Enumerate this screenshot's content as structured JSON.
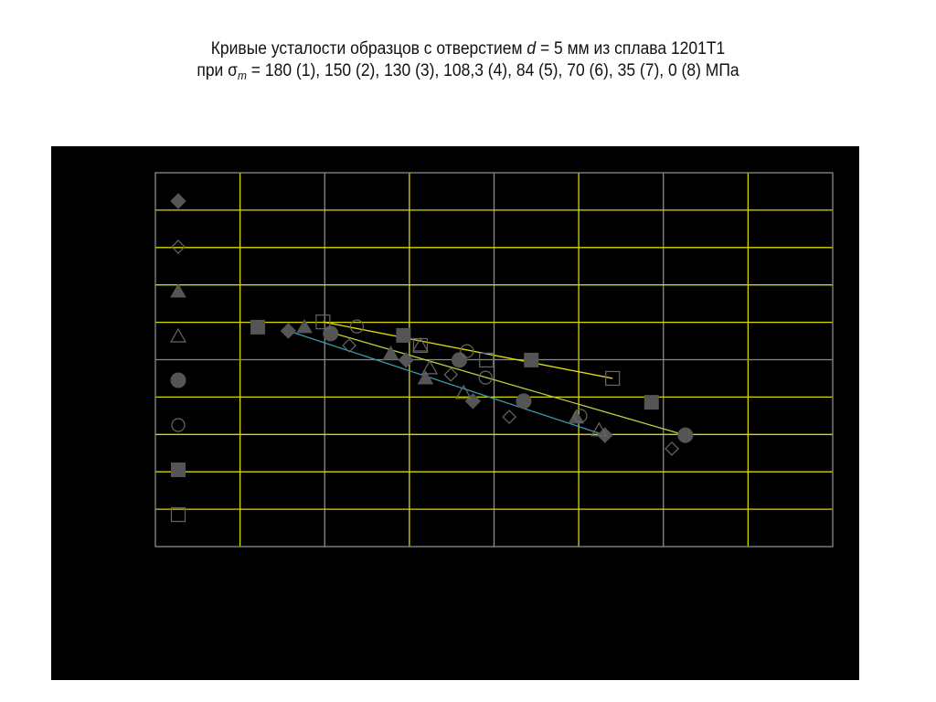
{
  "title": {
    "line1_a": "Кривые усталости образцов с отверстием ",
    "line1_d": "d",
    "line1_b": " = 5 мм из сплава 1201Т1",
    "line2_a": "при σ",
    "line2_sub": "m",
    "line2_b": " = 180 (1), 150 (2), 130 (3), 108,3 (4), 84 (5), 70 (6), 35 (7), 0 (8) МПа"
  },
  "chart_data": {
    "type": "scatter",
    "xlabel": "",
    "ylabel": "",
    "xlim": [
      0,
      8
    ],
    "ylim": [
      0,
      10
    ],
    "grid": true,
    "tick_labels_shown": false,
    "legend_placement": "left-inside",
    "colors": {
      "background": "#000000",
      "marker": "#555555",
      "grid_yellow": "#d8d800",
      "grid_gray": "#8a8a8a",
      "fit_8": "#e0e000",
      "fit_5": "#b8d040",
      "fit_1": "#3a9ab0"
    },
    "series": [
      {
        "marker": "filled-diamond",
        "x": [
          1.57,
          2.96,
          3.75,
          5.31
        ],
        "y": [
          5.77,
          4.99,
          3.89,
          2.98
        ]
      },
      {
        "marker": "open-diamond",
        "x": [
          2.29,
          3.49,
          4.18,
          6.1
        ],
        "y": [
          5.38,
          4.6,
          3.47,
          2.62
        ]
      },
      {
        "marker": "filled-triangle",
        "x": [
          1.76,
          2.78,
          3.19,
          4.97
        ],
        "y": [
          5.87,
          5.16,
          4.5,
          3.45
        ]
      },
      {
        "marker": "open-triangle",
        "x": [
          3.13,
          3.24,
          3.64,
          5.24
        ],
        "y": [
          5.38,
          4.77,
          4.11,
          3.11
        ]
      },
      {
        "marker": "filled-circle",
        "x": [
          2.07,
          3.59,
          4.35,
          6.26
        ],
        "y": [
          5.7,
          4.99,
          3.89,
          2.98
        ]
      },
      {
        "marker": "open-circle",
        "x": [
          2.38,
          3.68,
          3.9,
          5.02
        ],
        "y": [
          5.89,
          5.23,
          4.52,
          3.5
        ]
      },
      {
        "marker": "filled-square",
        "x": [
          1.21,
          2.93,
          4.44,
          5.86
        ],
        "y": [
          5.87,
          5.65,
          4.99,
          3.86
        ]
      },
      {
        "marker": "open-square",
        "x": [
          1.98,
          3.13,
          3.91,
          5.4
        ],
        "y": [
          6.01,
          5.38,
          4.99,
          4.5
        ]
      }
    ],
    "fit_lines": [
      {
        "series_index": 7,
        "color": "#e0e000",
        "from": [
          1.98,
          6.01
        ],
        "to": [
          5.4,
          4.5
        ]
      },
      {
        "series_index": 4,
        "color": "#b8d040",
        "from": [
          2.07,
          5.73
        ],
        "to": [
          6.26,
          2.98
        ]
      },
      {
        "series_index": 0,
        "color": "#3a9ab0",
        "from": [
          1.57,
          5.77
        ],
        "to": [
          5.31,
          2.98
        ]
      }
    ]
  }
}
